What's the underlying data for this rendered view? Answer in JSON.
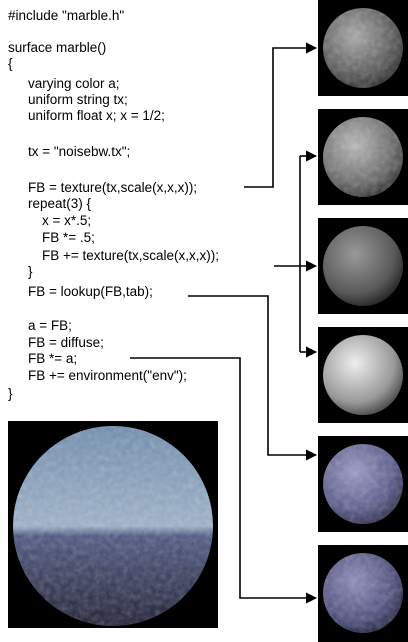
{
  "code": [
    "#include \"marble.h\"",
    "surface marble()",
    "{",
    "varying color a;",
    "uniform string tx;",
    "uniform float x; x = 1/2;",
    "tx = \"noisebw.tx\";",
    "FB = texture(tx,scale(x,x,x));",
    "repeat(3) {",
    "x = x*.5;",
    "FB *= .5;",
    "FB += texture(tx,scale(x,x,x));",
    "}",
    "FB = lookup(FB,tab);",
    "a = FB;",
    "FB = diffuse;",
    "FB *= a;",
    "FB += environment(\"env\");",
    "}"
  ]
}
